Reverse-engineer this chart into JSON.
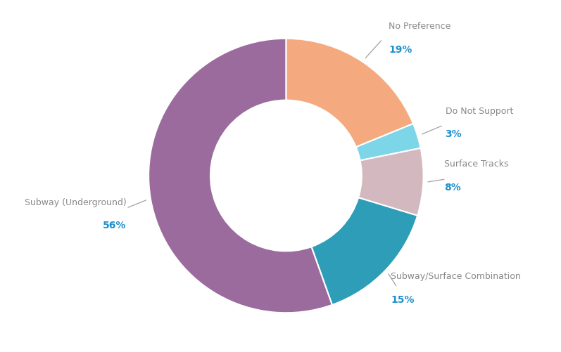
{
  "labels": [
    "No Preference",
    "Do Not Support",
    "Surface Tracks",
    "Subway/Surface Combination",
    "Subway (Underground)"
  ],
  "values": [
    19,
    3,
    8,
    15,
    56
  ],
  "colors": [
    "#F4A97F",
    "#7DD6E8",
    "#D4B8C0",
    "#2D9DB8",
    "#9B6B9E"
  ],
  "label_texts": [
    "No Preference",
    "Do Not Support",
    "Surface Tracks",
    "Subway/Surface Combination",
    "Subway (Underground)"
  ],
  "pct_texts": [
    "19%",
    "3%",
    "8%",
    "15%",
    "56%"
  ],
  "label_color": "#888888",
  "pct_color": "#1E90CC",
  "background_color": "#ffffff",
  "donut_width": 0.45,
  "figsize": [
    7.97,
    5.02
  ],
  "dpi": 100,
  "startangle": 90
}
